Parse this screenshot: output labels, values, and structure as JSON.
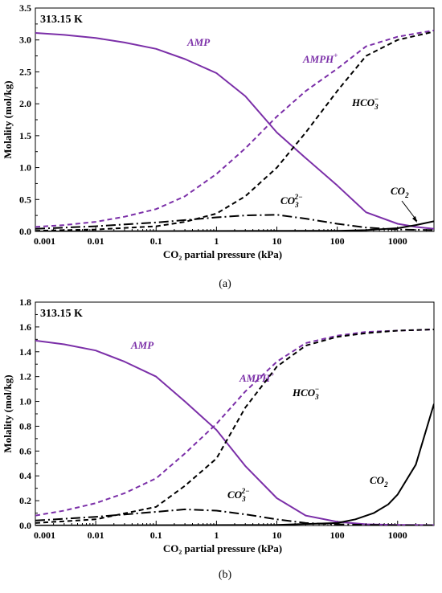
{
  "colors": {
    "purple": "#7b2fa8",
    "black": "#000000"
  },
  "chart_data": [
    {
      "type": "line",
      "panel": "(a)",
      "caption": "(a)",
      "temperature_label": "313.15 K",
      "xlabel": "CO₂ partial pressure (kPa)",
      "ylabel": "Molality (mol/kg)",
      "xscale": "log",
      "xlim": [
        0.001,
        4000
      ],
      "ylim": [
        0,
        3.5
      ],
      "x_ticks": [
        0.001,
        0.01,
        0.1,
        1,
        10,
        100,
        1000
      ],
      "x_tick_labels": [
        "0.001",
        "0.01",
        "0.1",
        "1",
        "10",
        "100",
        "1000"
      ],
      "y_ticks": [
        0,
        0.5,
        1,
        1.5,
        2,
        2.5,
        3,
        3.5
      ],
      "y_tick_labels": [
        "0.0",
        "0.5",
        "1.0",
        "1.5",
        "2.0",
        "2.5",
        "3.0",
        "3.5"
      ],
      "series": [
        {
          "name": "AMP",
          "label_main": "AMP",
          "color": "#7b2fa8",
          "dash": "solid",
          "x": [
            0.001,
            0.003,
            0.01,
            0.03,
            0.1,
            0.3,
            1,
            3,
            10,
            30,
            100,
            300,
            1000,
            2000,
            4000
          ],
          "y": [
            3.11,
            3.08,
            3.03,
            2.96,
            2.86,
            2.7,
            2.48,
            2.12,
            1.55,
            1.15,
            0.72,
            0.3,
            0.12,
            0.07,
            0.04
          ]
        },
        {
          "name": "AMPH+",
          "label_main": "AMPH",
          "label_sup": "+",
          "color": "#7b2fa8",
          "dash": "dashed",
          "x": [
            0.001,
            0.003,
            0.01,
            0.03,
            0.1,
            0.3,
            1,
            3,
            10,
            30,
            100,
            300,
            1000,
            4000
          ],
          "y": [
            0.07,
            0.1,
            0.15,
            0.23,
            0.35,
            0.55,
            0.9,
            1.3,
            1.8,
            2.2,
            2.55,
            2.9,
            3.05,
            3.15
          ]
        },
        {
          "name": "HCO3-",
          "label_main": "HCO",
          "label_sub": "3",
          "label_sup": "−",
          "color": "#000000",
          "dash": "dashed",
          "x": [
            0.001,
            0.01,
            0.1,
            0.3,
            1,
            3,
            10,
            30,
            100,
            300,
            1000,
            4000
          ],
          "y": [
            0.01,
            0.03,
            0.08,
            0.15,
            0.28,
            0.55,
            1.0,
            1.55,
            2.2,
            2.75,
            3.0,
            3.13
          ]
        },
        {
          "name": "CO3 2-",
          "label_main": "CO",
          "label_sub": "3",
          "label_sup": "2−",
          "color": "#000000",
          "dash": "dashdot",
          "x": [
            0.001,
            0.01,
            0.1,
            1,
            3,
            10,
            30,
            100,
            300,
            1000,
            4000
          ],
          "y": [
            0.04,
            0.08,
            0.14,
            0.22,
            0.25,
            0.26,
            0.2,
            0.12,
            0.06,
            0.03,
            0.02
          ]
        },
        {
          "name": "CO2",
          "label_main": "CO",
          "label_sub": "2",
          "color": "#000000",
          "dash": "solid",
          "x": [
            0.001,
            100,
            300,
            1000,
            2000,
            4000
          ],
          "y": [
            0.0,
            0.01,
            0.02,
            0.05,
            0.1,
            0.16
          ]
        }
      ]
    },
    {
      "type": "line",
      "panel": "(b)",
      "caption": "(b)",
      "temperature_label": "313.15 K",
      "xlabel": "CO₂ partial pressure (kPa)",
      "ylabel": "Molality (mol/kg)",
      "xscale": "log",
      "xlim": [
        0.001,
        4000
      ],
      "ylim": [
        0,
        1.8
      ],
      "x_ticks": [
        0.001,
        0.01,
        0.1,
        1,
        10,
        100,
        1000
      ],
      "x_tick_labels": [
        "0.001",
        "0.01",
        "0.1",
        "1",
        "10",
        "100",
        "1000"
      ],
      "y_ticks": [
        0,
        0.2,
        0.4,
        0.6,
        0.8,
        1.0,
        1.2,
        1.4,
        1.6,
        1.8
      ],
      "y_tick_labels": [
        "0.0",
        "0.2",
        "0.4",
        "0.6",
        "0.8",
        "1.0",
        "1.2",
        "1.4",
        "1.6",
        "1.8"
      ],
      "series": [
        {
          "name": "AMP",
          "label_main": "AMP",
          "color": "#7b2fa8",
          "dash": "solid",
          "x": [
            0.001,
            0.003,
            0.01,
            0.03,
            0.1,
            0.3,
            1,
            3,
            10,
            30,
            100,
            300,
            1000,
            4000
          ],
          "y": [
            1.49,
            1.46,
            1.41,
            1.32,
            1.2,
            1.0,
            0.77,
            0.48,
            0.22,
            0.08,
            0.03,
            0.01,
            0.005,
            0.003
          ]
        },
        {
          "name": "AMPH+",
          "label_main": "AMPH",
          "label_sup": "+",
          "color": "#7b2fa8",
          "dash": "dashed",
          "x": [
            0.001,
            0.003,
            0.01,
            0.03,
            0.1,
            0.3,
            1,
            3,
            10,
            30,
            100,
            300,
            1000,
            4000
          ],
          "y": [
            0.08,
            0.12,
            0.18,
            0.26,
            0.38,
            0.58,
            0.82,
            1.08,
            1.32,
            1.47,
            1.53,
            1.56,
            1.57,
            1.58
          ]
        },
        {
          "name": "HCO3-",
          "label_main": "HCO",
          "label_sub": "3",
          "label_sup": "−",
          "color": "#000000",
          "dash": "dashed",
          "x": [
            0.001,
            0.01,
            0.1,
            0.3,
            1,
            3,
            10,
            30,
            100,
            300,
            1000,
            4000
          ],
          "y": [
            0.02,
            0.05,
            0.15,
            0.32,
            0.54,
            0.95,
            1.28,
            1.45,
            1.52,
            1.55,
            1.57,
            1.58
          ]
        },
        {
          "name": "CO3 2-",
          "label_main": "CO",
          "label_sub": "3",
          "label_sup": "2−",
          "color": "#000000",
          "dash": "dashdot",
          "x": [
            0.001,
            0.01,
            0.1,
            0.3,
            1,
            3,
            10,
            30,
            100,
            300,
            1000,
            4000
          ],
          "y": [
            0.04,
            0.07,
            0.11,
            0.13,
            0.12,
            0.09,
            0.05,
            0.02,
            0.01,
            0.005,
            0.002,
            0.001
          ]
        },
        {
          "name": "CO2",
          "label_main": "CO",
          "label_sub": "2",
          "color": "#000000",
          "dash": "solid",
          "x": [
            0.001,
            10,
            100,
            200,
            400,
            700,
            1000,
            2000,
            4000
          ],
          "y": [
            0.0,
            0.005,
            0.02,
            0.05,
            0.1,
            0.17,
            0.25,
            0.49,
            0.98
          ]
        }
      ]
    }
  ]
}
